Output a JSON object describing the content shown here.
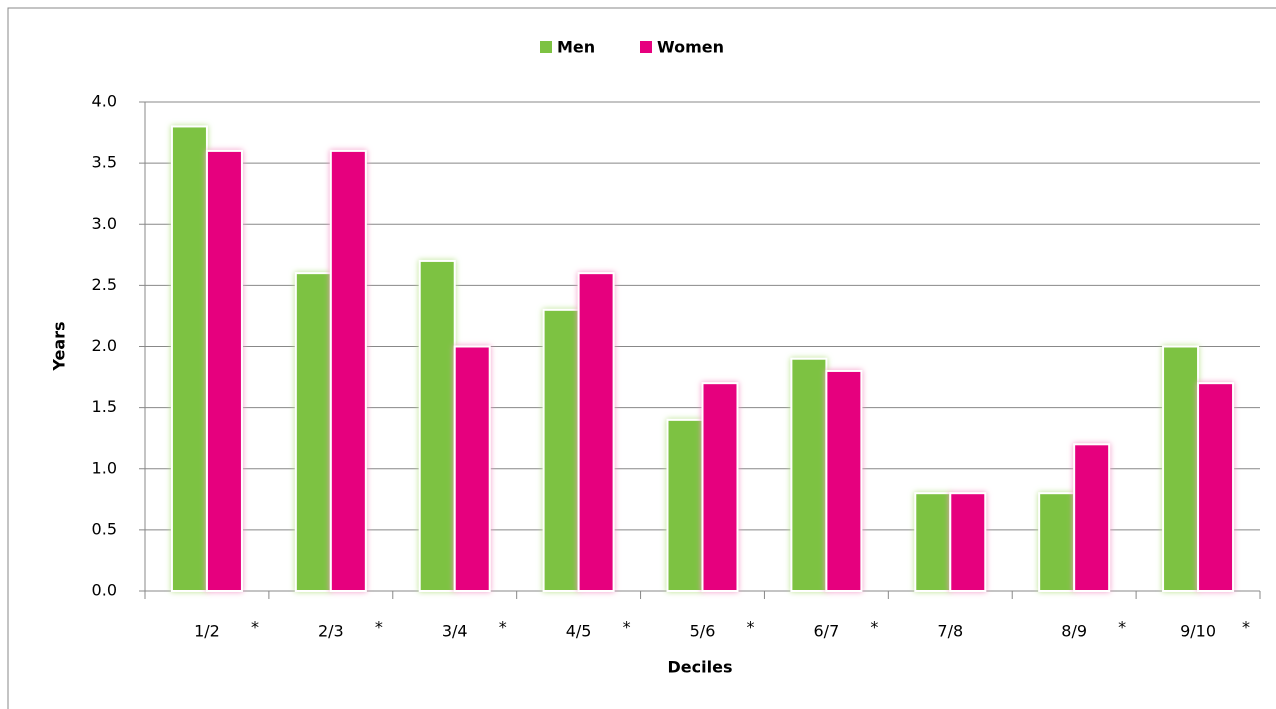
{
  "chart_data": {
    "type": "bar",
    "x_label": "Deciles",
    "y_label": "Years",
    "categories": [
      "1/2",
      "2/3",
      "3/4",
      "4/5",
      "5/6",
      "6/7",
      "7/8",
      "8/9",
      "9/10"
    ],
    "annotations": [
      "*",
      "*",
      "*",
      "*",
      "*",
      "*",
      null,
      "*",
      "*"
    ],
    "series": [
      {
        "name": "Men",
        "color": "#7dc242",
        "values": [
          3.8,
          2.6,
          2.7,
          2.3,
          1.4,
          1.9,
          0.8,
          0.8,
          2.0
        ]
      },
      {
        "name": "Women",
        "color": "#e6007e",
        "values": [
          3.6,
          3.6,
          2.0,
          2.6,
          1.7,
          1.8,
          0.8,
          1.2,
          1.7
        ]
      }
    ],
    "ylim": [
      0,
      4
    ],
    "yticks": [
      {
        "value": 0,
        "label": "0.0"
      },
      0.5,
      {
        "value": 1,
        "label": "1.0"
      },
      1.5,
      {
        "value": 2,
        "label": "2.0"
      },
      2.5,
      {
        "value": 3,
        "label": "3.0"
      },
      3.5,
      {
        "value": 4,
        "label": "4.0"
      }
    ],
    "grid": true,
    "legend": "top"
  }
}
